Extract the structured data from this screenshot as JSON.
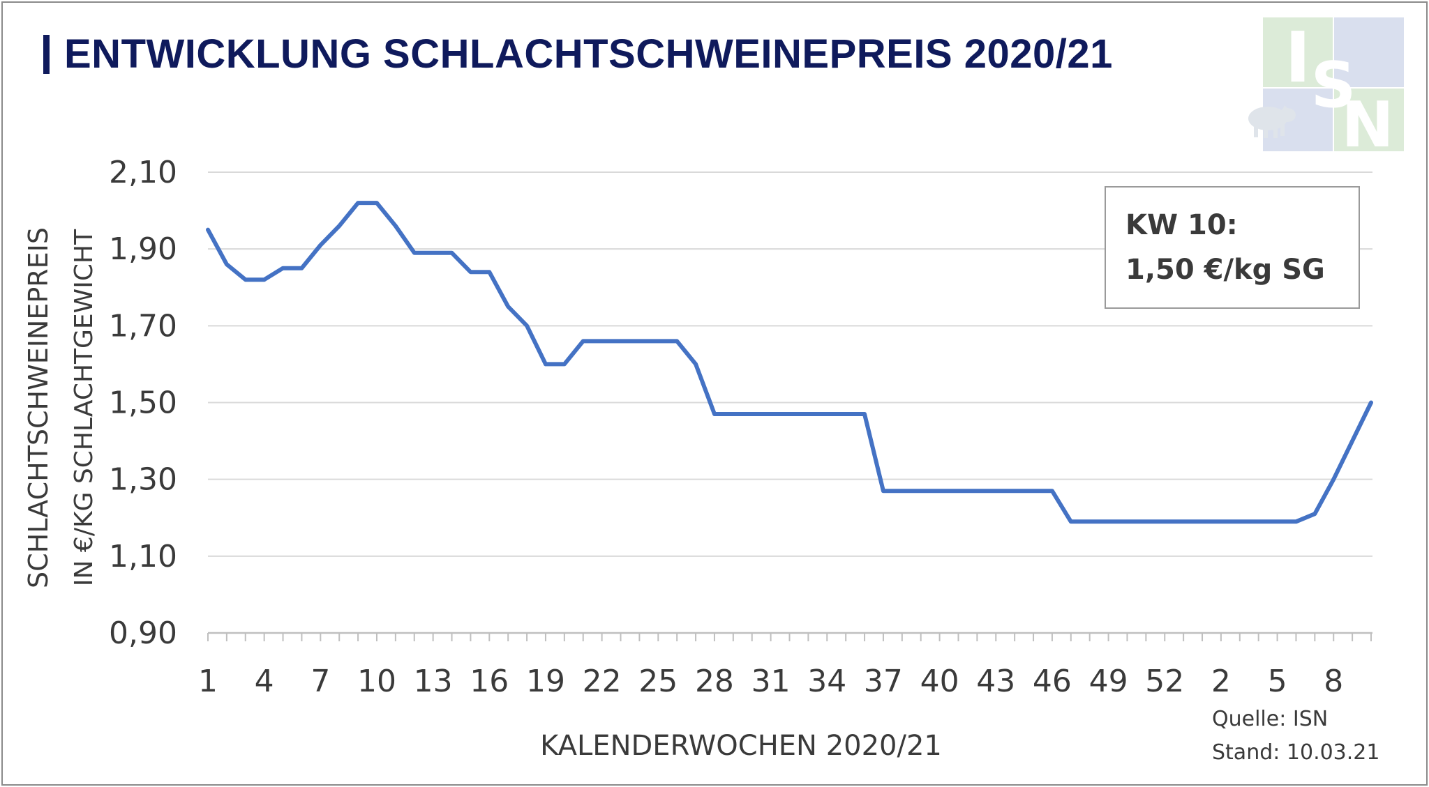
{
  "header": {
    "title": "ENTWICKLUNG SCHLACHTSCHWEINEPREIS 2020/21",
    "accent_color": "#0f1a5c"
  },
  "logo": {
    "letters": [
      "I",
      "S",
      "N"
    ],
    "pig": "pig-icon",
    "colors": {
      "green": "#dcebd8",
      "blue": "#d9dfee",
      "white": "#ffffff"
    }
  },
  "annotation": {
    "line1": "KW 10:",
    "line2": "1,50 €/kg SG"
  },
  "source": {
    "line1": "Quelle: ISN",
    "line2": "Stand: 10.03.21"
  },
  "chart_data": {
    "type": "line",
    "title": "ENTWICKLUNG SCHLACHTSCHWEINEPREIS 2020/21",
    "xlabel": "KALENDERWOCHEN 2020/21",
    "ylabel_line1": "SCHLACHTSCHWEINEPREIS",
    "ylabel_line2": "IN €/KG SCHLACHTGEWICHT",
    "ylim": [
      0.9,
      2.1
    ],
    "yticks": [
      "0,90",
      "1,10",
      "1,30",
      "1,50",
      "1,70",
      "1,90",
      "2,10"
    ],
    "ytick_values": [
      0.9,
      1.1,
      1.3,
      1.5,
      1.7,
      1.9,
      2.1
    ],
    "grid": true,
    "line_color": "#4472c4",
    "x": [
      "1",
      "2",
      "3",
      "4",
      "5",
      "6",
      "7",
      "8",
      "9",
      "10",
      "11",
      "12",
      "13",
      "14",
      "15",
      "16",
      "17",
      "18",
      "19",
      "20",
      "21",
      "22",
      "23",
      "24",
      "25",
      "26",
      "27",
      "28",
      "29",
      "30",
      "31",
      "32",
      "33",
      "34",
      "35",
      "36",
      "37",
      "38",
      "39",
      "40",
      "41",
      "42",
      "43",
      "44",
      "45",
      "46",
      "47",
      "48",
      "49",
      "50",
      "51",
      "52",
      "53",
      "1",
      "2",
      "3",
      "4",
      "5",
      "6",
      "7",
      "8",
      "9",
      "10"
    ],
    "xtick_labels": [
      "1",
      "4",
      "7",
      "10",
      "13",
      "16",
      "19",
      "22",
      "25",
      "28",
      "31",
      "34",
      "37",
      "40",
      "43",
      "46",
      "49",
      "52",
      "2",
      "5",
      "8"
    ],
    "xtick_indices": [
      0,
      3,
      6,
      9,
      12,
      15,
      18,
      21,
      24,
      27,
      30,
      33,
      36,
      39,
      42,
      45,
      48,
      51,
      54,
      57,
      60
    ],
    "series": [
      {
        "values": [
          1.95,
          1.86,
          1.82,
          1.82,
          1.85,
          1.85,
          1.91,
          1.96,
          2.02,
          2.02,
          1.96,
          1.89,
          1.89,
          1.89,
          1.84,
          1.84,
          1.75,
          1.7,
          1.6,
          1.6,
          1.66,
          1.66,
          1.66,
          1.66,
          1.66,
          1.66,
          1.6,
          1.47,
          1.47,
          1.47,
          1.47,
          1.47,
          1.47,
          1.47,
          1.47,
          1.47,
          1.27,
          1.27,
          1.27,
          1.27,
          1.27,
          1.27,
          1.27,
          1.27,
          1.27,
          1.27,
          1.19,
          1.19,
          1.19,
          1.19,
          1.19,
          1.19,
          1.19,
          1.19,
          1.19,
          1.19,
          1.19,
          1.19,
          1.19,
          1.21,
          1.3,
          1.4,
          1.5
        ]
      }
    ]
  }
}
